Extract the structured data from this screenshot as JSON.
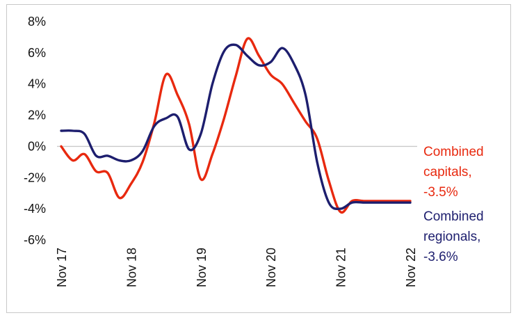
{
  "chart_data": {
    "type": "line",
    "title": "",
    "xlabel": "",
    "ylabel": "",
    "ylim": [
      -6,
      8
    ],
    "yticks": [
      "8%",
      "6%",
      "4%",
      "2%",
      "0%",
      "-2%",
      "-4%",
      "-6%"
    ],
    "ytick_values": [
      8,
      6,
      4,
      2,
      0,
      -2,
      -4,
      -6
    ],
    "xticks": [
      "Nov 17",
      "Nov 18",
      "Nov 19",
      "Nov 20",
      "Nov 21",
      "Nov 22"
    ],
    "xtick_values": [
      "2017-11",
      "2018-11",
      "2019-11",
      "2020-11",
      "2021-11",
      "2022-11"
    ],
    "x": [
      "2017-11",
      "2018-01",
      "2018-03",
      "2018-05",
      "2018-07",
      "2018-09",
      "2018-11",
      "2019-01",
      "2019-03",
      "2019-05",
      "2019-07",
      "2019-09",
      "2019-11",
      "2020-01",
      "2020-03",
      "2020-05",
      "2020-07",
      "2020-09",
      "2020-11",
      "2021-01",
      "2021-03",
      "2021-05",
      "2021-07",
      "2021-09",
      "2021-11",
      "2022-01",
      "2022-03",
      "2022-05",
      "2022-07",
      "2022-09",
      "2022-11"
    ],
    "series": [
      {
        "name": "Combined capitals, -3.5%",
        "color": "#e8290f",
        "values": [
          0.0,
          -0.9,
          -0.5,
          -1.6,
          -1.7,
          -3.3,
          -2.4,
          -1.0,
          1.5,
          4.6,
          3.3,
          1.4,
          -2.1,
          -0.5,
          1.8,
          4.5,
          6.9,
          5.8,
          4.6,
          4.0,
          2.8,
          1.6,
          0.5,
          -2.2,
          -4.2,
          -3.5,
          -3.5,
          -3.5,
          -3.5,
          -3.5,
          -3.5
        ],
        "label_lines": [
          "Combined",
          "capitals,",
          "-3.5%"
        ]
      },
      {
        "name": "Combined regionals, -3.6%",
        "color": "#1d1e6e",
        "values": [
          1.0,
          1.0,
          0.8,
          -0.6,
          -0.6,
          -0.9,
          -0.9,
          -0.3,
          1.3,
          1.8,
          1.9,
          -0.2,
          0.8,
          4.0,
          6.1,
          6.5,
          5.8,
          5.2,
          5.4,
          6.3,
          5.3,
          3.3,
          -1.0,
          -3.6,
          -4.0,
          -3.6,
          -3.6,
          -3.6,
          -3.6,
          -3.6,
          -3.6
        ],
        "label_lines": [
          "Combined",
          "regionals,",
          "-3.6%"
        ]
      }
    ],
    "grid": false,
    "legend": "right"
  }
}
